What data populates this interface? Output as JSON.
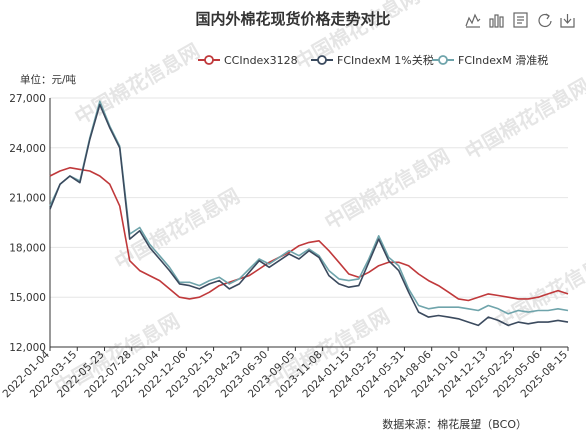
{
  "chart_data": {
    "type": "line",
    "title": "国内外棉花现货价格走势对比",
    "ylabel": "单位：元/吨",
    "ylim": [
      12000,
      27000
    ],
    "yticks": [
      "12,000",
      "15,000",
      "18,000",
      "21,000",
      "24,000",
      "27,000"
    ],
    "x_ticks": [
      "2022-01-04",
      "2022-03-15",
      "2022-05-23",
      "2022-07-28",
      "2022-10-04",
      "2022-12-06",
      "2023-02-15",
      "2023-04-23",
      "2023-06-30",
      "2023-09-05",
      "2023-11-08",
      "2024-01-15",
      "2024-03-25",
      "2024-05-31",
      "2024-08-06",
      "2024-10-10",
      "2024-12-13",
      "2025-02-25",
      "2025-05-06",
      "2025-08-15"
    ],
    "grid": true,
    "legend_position": "top",
    "source": "数据来源：棉花展望（BCO）",
    "watermark": "中国棉花信息网",
    "series": [
      {
        "name": "CCIndex3128",
        "color": "#c0393b",
        "values": [
          22300,
          22600,
          22800,
          22700,
          22600,
          22300,
          21800,
          20500,
          17200,
          16600,
          16300,
          16000,
          15500,
          15000,
          14900,
          15000,
          15300,
          15700,
          15900,
          16100,
          16300,
          16700,
          17100,
          17400,
          17700,
          18100,
          18300,
          18400,
          17800,
          17100,
          16400,
          16200,
          16500,
          16900,
          17100,
          17100,
          16900,
          16400,
          16000,
          15700,
          15300,
          14900,
          14800,
          15000,
          15200,
          15100,
          15000,
          14900,
          14900,
          15000,
          15200,
          15400,
          15200
        ]
      },
      {
        "name": "FCIndexM 1%关税",
        "color": "#3b4a5e",
        "values": [
          20300,
          21800,
          22300,
          21900,
          24500,
          26600,
          25200,
          24000,
          18500,
          19000,
          18000,
          17300,
          16600,
          15800,
          15700,
          15500,
          15800,
          16000,
          15500,
          15800,
          16500,
          17200,
          16800,
          17200,
          17600,
          17300,
          17800,
          17400,
          16300,
          15800,
          15600,
          15700,
          17100,
          18500,
          17200,
          16600,
          15300,
          14100,
          13800,
          13900,
          13800,
          13700,
          13500,
          13300,
          13800,
          13600,
          13300,
          13500,
          13400,
          13500,
          13500,
          13600,
          13500
        ]
      },
      {
        "name": "FCIndexM 滑准税",
        "color": "#6fa4ab",
        "values": [
          20500,
          21800,
          22300,
          22000,
          24600,
          26800,
          25300,
          24100,
          18800,
          19200,
          18200,
          17500,
          16800,
          15900,
          15900,
          15700,
          16000,
          16200,
          15800,
          16100,
          16700,
          17300,
          17000,
          17400,
          17800,
          17500,
          17900,
          17500,
          16600,
          16100,
          16000,
          16100,
          17300,
          18700,
          17400,
          16900,
          15500,
          14500,
          14300,
          14400,
          14400,
          14400,
          14300,
          14200,
          14500,
          14300,
          14000,
          14200,
          14100,
          14200,
          14200,
          14300,
          14200
        ]
      }
    ]
  }
}
